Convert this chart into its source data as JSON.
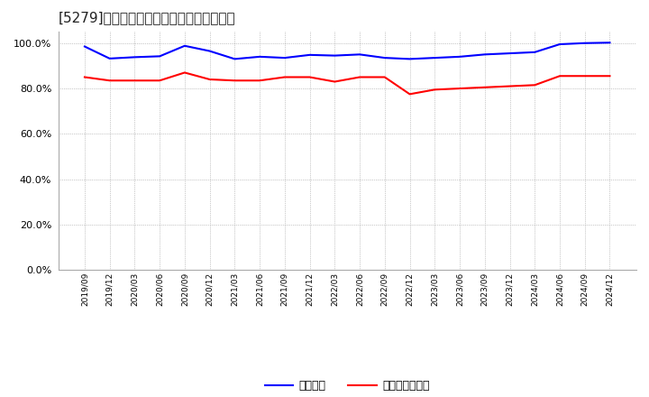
{
  "title": "[5279]　固定比率、固定長期適合率の推移",
  "x_labels": [
    "2019/09",
    "2019/12",
    "2020/03",
    "2020/06",
    "2020/09",
    "2020/12",
    "2021/03",
    "2021/06",
    "2021/09",
    "2021/12",
    "2022/03",
    "2022/06",
    "2022/09",
    "2022/12",
    "2023/03",
    "2023/06",
    "2023/09",
    "2023/12",
    "2024/03",
    "2024/06",
    "2024/09",
    "2024/12"
  ],
  "fixed_ratio": [
    98.5,
    93.2,
    93.8,
    94.2,
    98.8,
    96.5,
    93.0,
    94.0,
    93.5,
    94.8,
    94.5,
    95.0,
    93.5,
    93.0,
    93.5,
    94.0,
    95.0,
    95.5,
    96.0,
    99.5,
    100.0,
    100.2
  ],
  "fixed_long_ratio": [
    85.0,
    83.5,
    83.5,
    83.5,
    87.0,
    84.0,
    83.5,
    83.5,
    85.0,
    85.0,
    83.0,
    85.0,
    85.0,
    77.5,
    79.5,
    80.0,
    80.5,
    81.0,
    81.5,
    85.5,
    85.5,
    85.5
  ],
  "blue_color": "#0000FF",
  "red_color": "#FF0000",
  "bg_color": "#FFFFFF",
  "grid_color": "#999999",
  "ylim": [
    0.0,
    105.0
  ],
  "yticks": [
    0,
    20,
    40,
    60,
    80,
    100
  ],
  "legend_fixed": "固定比率",
  "legend_fixed_long": "固定長期適合率"
}
